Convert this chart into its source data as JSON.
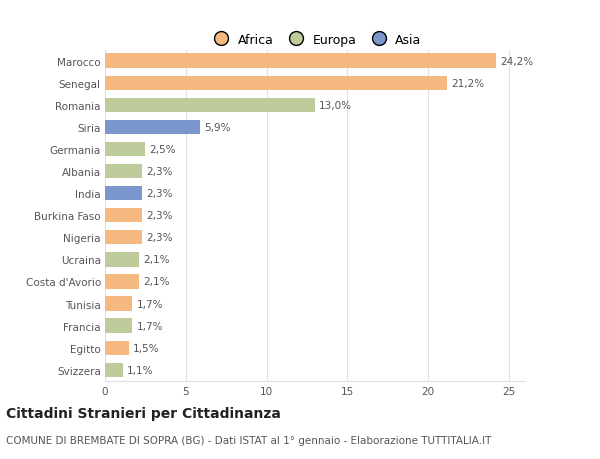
{
  "title": "Cittadini Stranieri per Cittadinanza",
  "subtitle": "COMUNE DI BREMBATE DI SOPRA (BG) - Dati ISTAT al 1° gennaio - Elaborazione TUTTITALIA.IT",
  "categories": [
    "Marocco",
    "Senegal",
    "Romania",
    "Siria",
    "Germania",
    "Albania",
    "India",
    "Burkina Faso",
    "Nigeria",
    "Ucraina",
    "Costa d'Avorio",
    "Tunisia",
    "Francia",
    "Egitto",
    "Svizzera"
  ],
  "values": [
    24.2,
    21.2,
    13.0,
    5.9,
    2.5,
    2.3,
    2.3,
    2.3,
    2.3,
    2.1,
    2.1,
    1.7,
    1.7,
    1.5,
    1.1
  ],
  "labels": [
    "24,2%",
    "21,2%",
    "13,0%",
    "5,9%",
    "2,5%",
    "2,3%",
    "2,3%",
    "2,3%",
    "2,3%",
    "2,1%",
    "2,1%",
    "1,7%",
    "1,7%",
    "1,5%",
    "1,1%"
  ],
  "continent": [
    "Africa",
    "Africa",
    "Europa",
    "Asia",
    "Europa",
    "Europa",
    "Asia",
    "Africa",
    "Africa",
    "Europa",
    "Africa",
    "Africa",
    "Europa",
    "Africa",
    "Europa"
  ],
  "colors": {
    "Africa": "#F5B97F",
    "Europa": "#BDCC9A",
    "Asia": "#7B96CC"
  },
  "xlim": [
    0,
    26
  ],
  "xticks": [
    0,
    5,
    10,
    15,
    20,
    25
  ],
  "background_color": "#ffffff",
  "grid_color": "#e0e0e0",
  "title_fontsize": 10,
  "subtitle_fontsize": 7.5,
  "label_fontsize": 7.5,
  "tick_fontsize": 7.5,
  "legend_fontsize": 9
}
